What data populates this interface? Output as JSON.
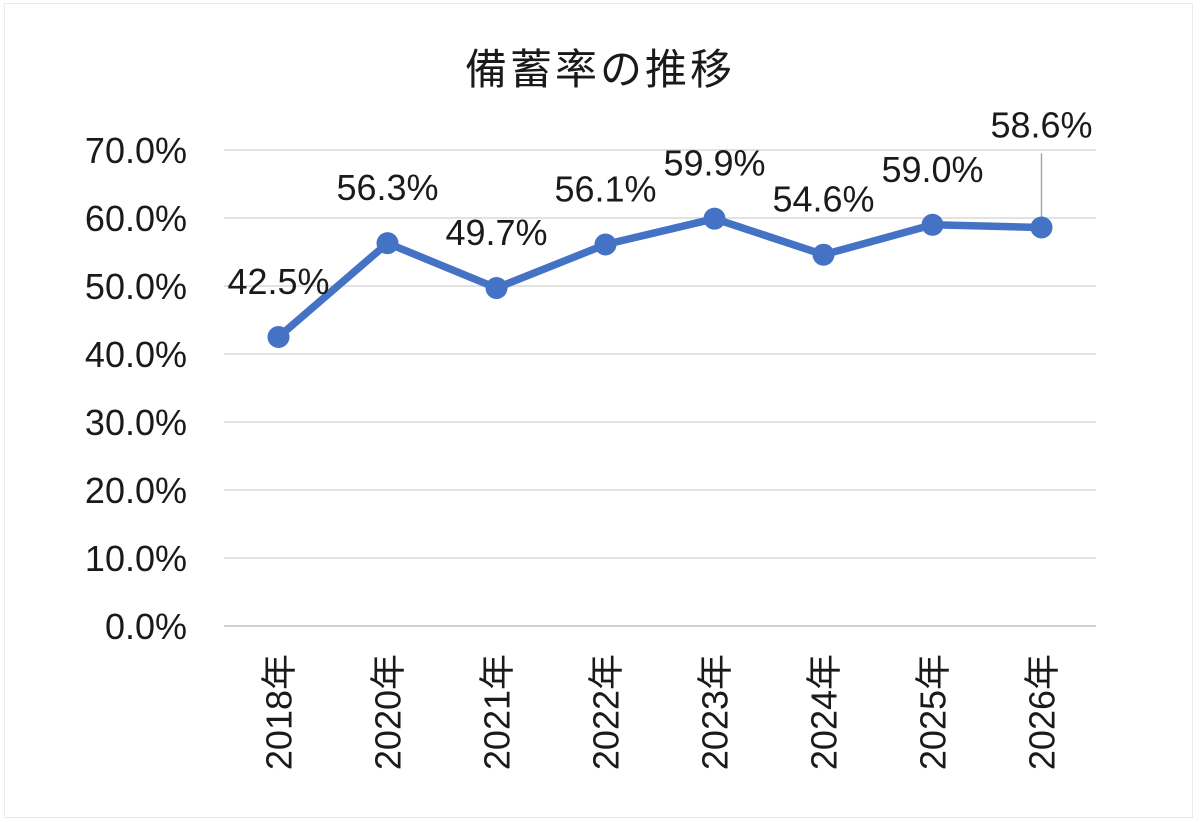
{
  "chart_data": {
    "type": "line",
    "title": "備蓄率の推移",
    "categories": [
      "2018年",
      "2020年",
      "2021年",
      "2022年",
      "2023年",
      "2024年",
      "2025年",
      "2026年"
    ],
    "series": [
      {
        "values": [
          42.5,
          56.3,
          49.7,
          56.1,
          59.9,
          54.6,
          59.0,
          58.6
        ],
        "data_labels": [
          "42.5%",
          "56.3%",
          "49.7%",
          "56.1%",
          "59.9%",
          "54.6%",
          "59.0%",
          "58.6%"
        ],
        "color": "#4472C4"
      }
    ],
    "xlabel": "",
    "ylabel": "",
    "ylim": [
      0,
      70
    ],
    "ytick_step": 10,
    "ytick_labels": [
      "0.0%",
      "10.0%",
      "20.0%",
      "30.0%",
      "40.0%",
      "50.0%",
      "60.0%",
      "70.0%"
    ],
    "grid": true,
    "legend": "none",
    "data_label_position": "above",
    "callout": {
      "index": 7,
      "has_leader_line": true
    },
    "colors": {
      "series": "#4472C4",
      "gridline": "#D9D9D9",
      "axis_line": "#C0C0C4",
      "text": "#1A1A1A",
      "leader_line": "#A6A6A6",
      "background": "#FFFFFF",
      "frame_border": "#E9E9EF"
    }
  }
}
